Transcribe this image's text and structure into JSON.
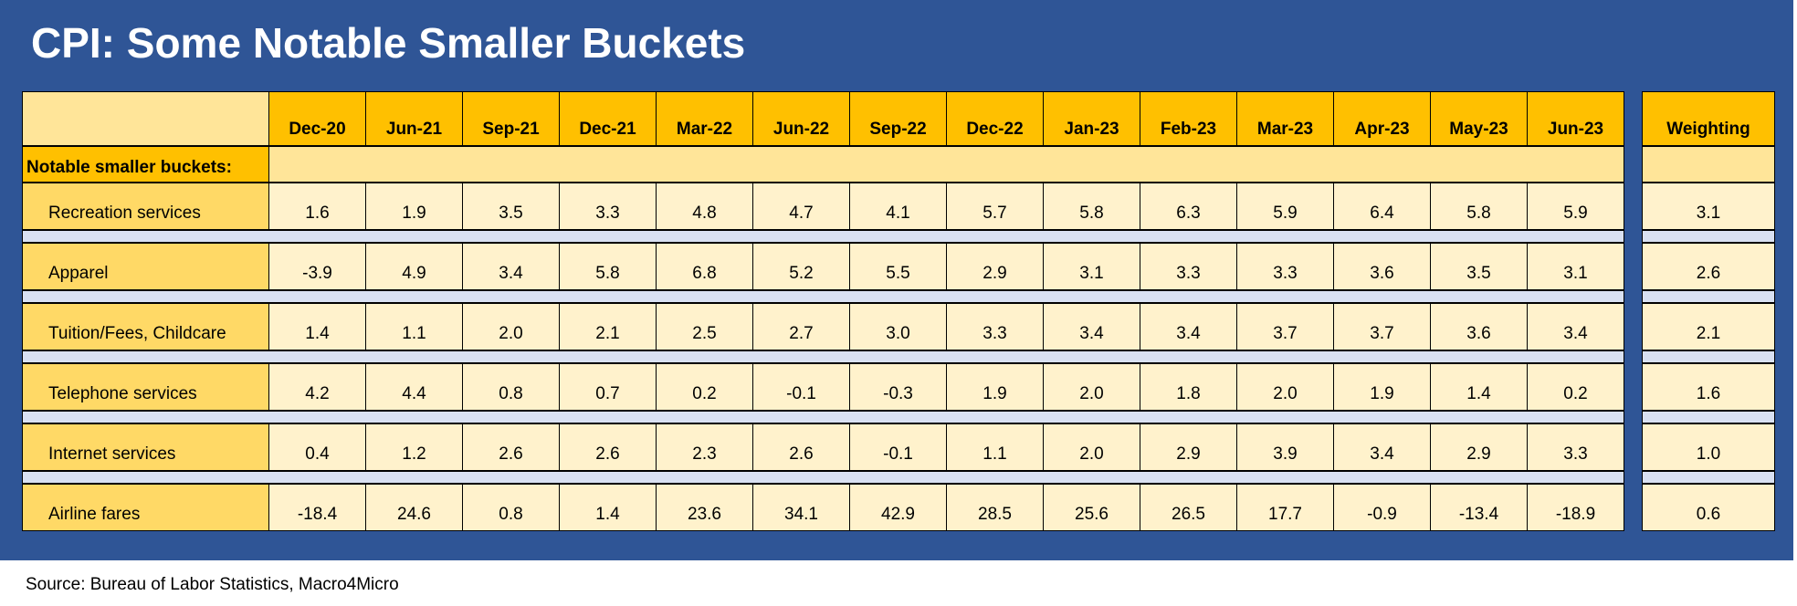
{
  "title": "CPI: Some Notable Smaller Buckets",
  "source": "Source: Bureau of Labor Statistics, Macro4Micro",
  "colors": {
    "frame": "#2f5596",
    "header": "#ffc000",
    "label_column": "#ffd966",
    "value_cell": "#fff2cc",
    "separator": "#d9e1f2"
  },
  "chart_data": {
    "type": "table",
    "section_label": "Notable smaller buckets:",
    "columns": [
      "Dec-20",
      "Jun-21",
      "Sep-21",
      "Dec-21",
      "Mar-22",
      "Jun-22",
      "Sep-22",
      "Dec-22",
      "Jan-23",
      "Feb-23",
      "Mar-23",
      "Apr-23",
      "May-23",
      "Jun-23"
    ],
    "weighting_header": "Weighting",
    "rows": [
      {
        "label": "Recreation services",
        "values": [
          "1.6",
          "1.9",
          "3.5",
          "3.3",
          "4.8",
          "4.7",
          "4.1",
          "5.7",
          "5.8",
          "6.3",
          "5.9",
          "6.4",
          "5.8",
          "5.9"
        ],
        "weighting": "3.1"
      },
      {
        "label": "Apparel",
        "values": [
          "-3.9",
          "4.9",
          "3.4",
          "5.8",
          "6.8",
          "5.2",
          "5.5",
          "2.9",
          "3.1",
          "3.3",
          "3.3",
          "3.6",
          "3.5",
          "3.1"
        ],
        "weighting": "2.6"
      },
      {
        "label": "Tuition/Fees, Childcare",
        "values": [
          "1.4",
          "1.1",
          "2.0",
          "2.1",
          "2.5",
          "2.7",
          "3.0",
          "3.3",
          "3.4",
          "3.4",
          "3.7",
          "3.7",
          "3.6",
          "3.4"
        ],
        "weighting": "2.1"
      },
      {
        "label": "Telephone services",
        "values": [
          "4.2",
          "4.4",
          "0.8",
          "0.7",
          "0.2",
          "-0.1",
          "-0.3",
          "1.9",
          "2.0",
          "1.8",
          "2.0",
          "1.9",
          "1.4",
          "0.2"
        ],
        "weighting": "1.6"
      },
      {
        "label": "Internet services",
        "values": [
          "0.4",
          "1.2",
          "2.6",
          "2.6",
          "2.3",
          "2.6",
          "-0.1",
          "1.1",
          "2.0",
          "2.9",
          "3.9",
          "3.4",
          "2.9",
          "3.3"
        ],
        "weighting": "1.0"
      },
      {
        "label": "Airline fares",
        "values": [
          "-18.4",
          "24.6",
          "0.8",
          "1.4",
          "23.6",
          "34.1",
          "42.9",
          "28.5",
          "25.6",
          "26.5",
          "17.7",
          "-0.9",
          "-13.4",
          "-18.9"
        ],
        "weighting": "0.6"
      }
    ]
  }
}
